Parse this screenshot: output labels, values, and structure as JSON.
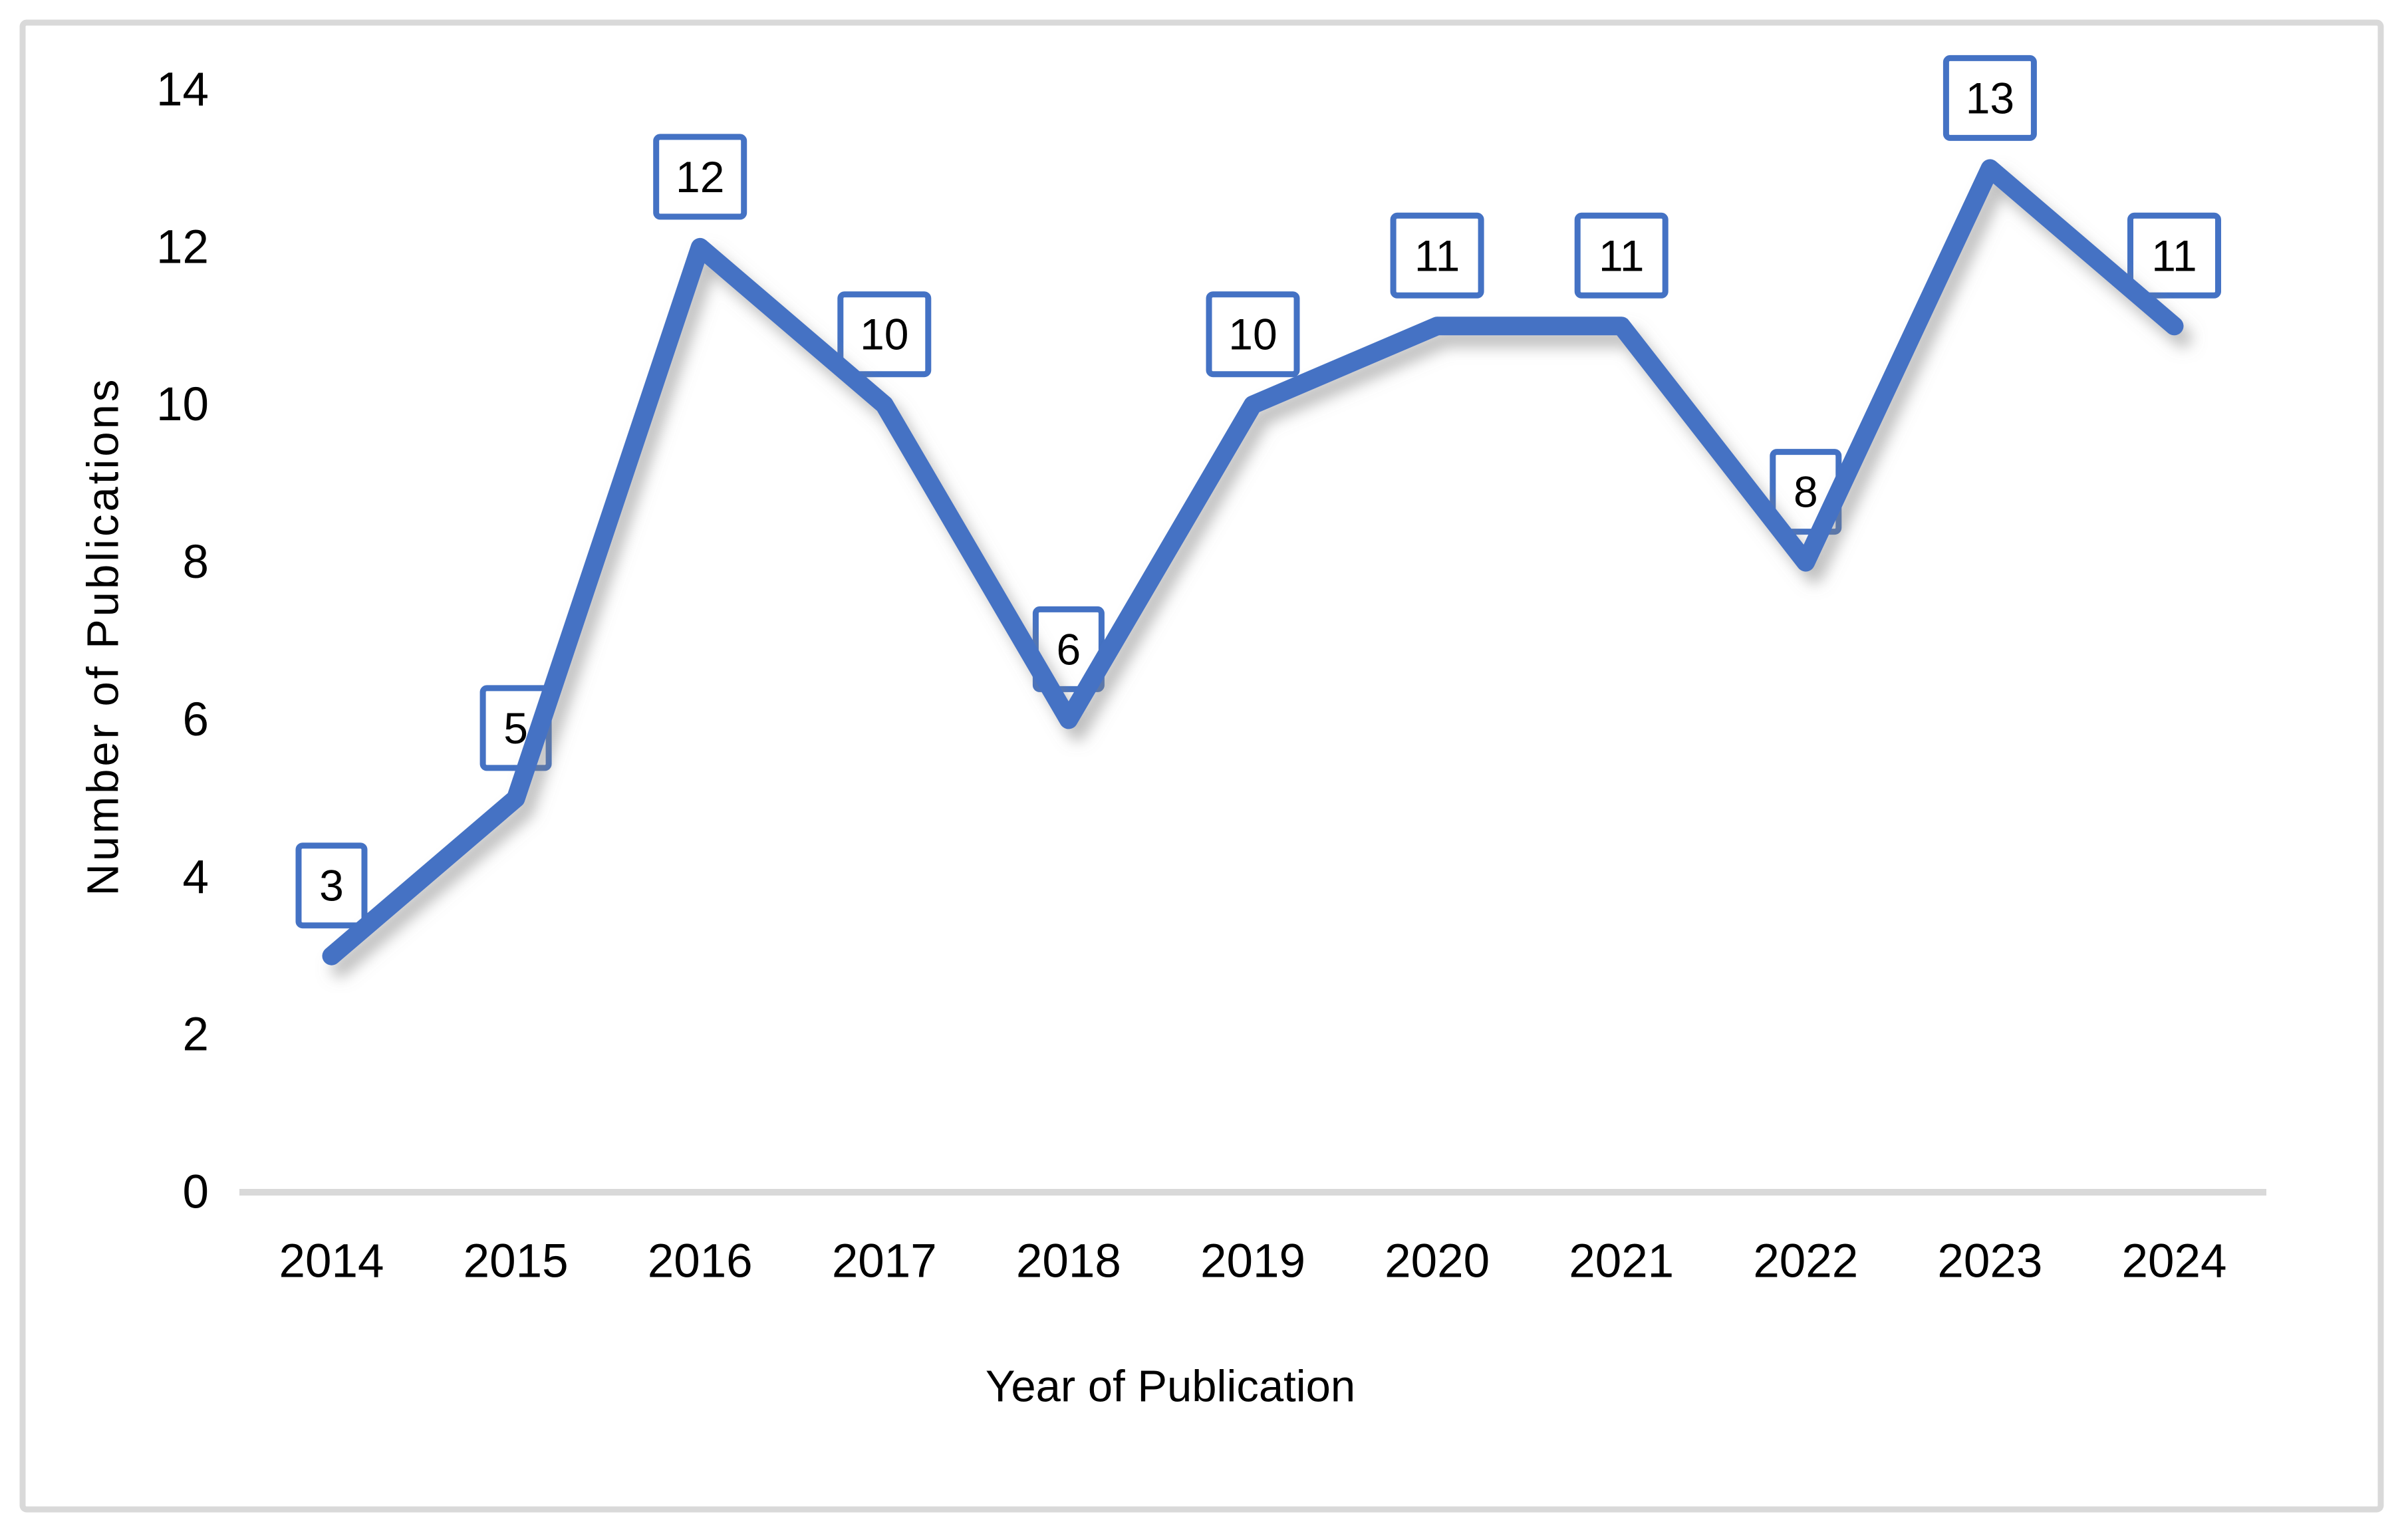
{
  "figure": {
    "background": "#ffffff",
    "border_color": "#d9d9d9"
  },
  "chart_data": {
    "type": "line",
    "categories": [
      "2014",
      "2015",
      "2016",
      "2017",
      "2018",
      "2019",
      "2020",
      "2021",
      "2022",
      "2023",
      "2024"
    ],
    "values": [
      3,
      5,
      12,
      10,
      6,
      10,
      11,
      11,
      8,
      13,
      11
    ],
    "title": "",
    "xlabel": "Year of Publication",
    "ylabel": "Number of Publications",
    "ylim": [
      0,
      14
    ],
    "yticks": [
      0,
      2,
      4,
      6,
      8,
      10,
      12,
      14
    ],
    "grid": false,
    "legend_position": "none",
    "line_color": "#4472c4",
    "label_box_border_color": "#4472c4",
    "label_box_fill": "#ffffff",
    "axis_line_color": "#d9d9d9",
    "text_color": "#000000"
  }
}
